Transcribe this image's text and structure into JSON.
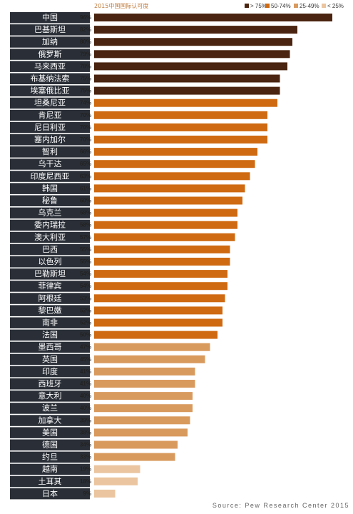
{
  "colors": {
    "label_bg": "#2a2f37",
    "gt75": "#4a2410",
    "c50_74": "#cf6a12",
    "c25_49": "#d99a5e",
    "lt25": "#ebc59f",
    "title": "#c07a3a"
  },
  "chart_data": {
    "type": "bar",
    "orientation": "horizontal",
    "title": "2015中国国际认可度",
    "legend": [
      {
        "label": "> 75%",
        "color": "#4a2410"
      },
      {
        "label": "50-74%",
        "color": "#cf6a12"
      },
      {
        "label": "25-49%",
        "color": "#d99a5e"
      },
      {
        "label": "< 25%",
        "color": "#ebc59f"
      }
    ],
    "legend_position": "top-right",
    "categories": [
      "中国",
      "巴基斯坦",
      "加纳",
      "俄罗斯",
      "马来西亚",
      "布基纳法索",
      "埃塞俄比亚",
      "坦桑尼亚",
      "肯尼亚",
      "尼日利亚",
      "塞内加尔",
      "智利",
      "乌干达",
      "印度尼西亚",
      "韩国",
      "秘鲁",
      "乌克兰",
      "委内瑞拉",
      "澳大利亚",
      "巴西",
      "以色列",
      "巴勒斯坦",
      "菲律宾",
      "阿根廷",
      "黎巴嫩",
      "南非",
      "法国",
      "墨西哥",
      "英国",
      "印度",
      "西班牙",
      "意大利",
      "波兰",
      "加拿大",
      "美国",
      "德国",
      "约旦",
      "越南",
      "土耳其",
      "日本"
    ],
    "values": [
      96,
      82,
      80,
      79,
      78,
      75,
      75,
      74,
      70,
      70,
      70,
      66,
      65,
      63,
      61,
      60,
      58,
      58,
      57,
      55,
      55,
      54,
      54,
      53,
      52,
      52,
      50,
      47,
      45,
      41,
      41,
      40,
      40,
      39,
      38,
      34,
      33,
      19,
      18,
      9
    ],
    "value_labels": [
      "96%",
      "82%",
      "80%",
      "79%",
      "78%",
      "75%",
      "75%",
      "74%",
      "70%",
      "70%",
      "70%",
      "66%",
      "65%",
      "63%",
      "61%",
      "60%",
      "58%",
      "58%",
      "57%",
      "55%",
      "55%",
      "54%",
      "54%",
      "53%",
      "52%",
      "52%",
      "50%",
      "47%",
      "45%",
      "41%",
      "41%",
      "40%",
      "40%",
      "39%",
      "38%",
      "34%",
      "33%",
      "19%",
      "18%",
      "9%"
    ],
    "xlim": [
      0,
      100
    ],
    "grid": false
  },
  "source": "Source: Pew Research Center 2015"
}
